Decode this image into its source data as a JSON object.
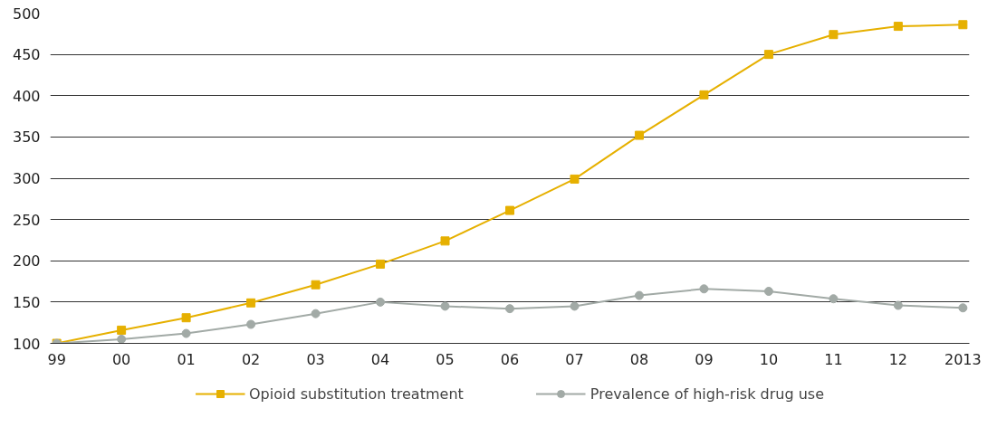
{
  "chart_data": {
    "type": "line",
    "categories": [
      "99",
      "00",
      "01",
      "02",
      "03",
      "04",
      "05",
      "06",
      "07",
      "08",
      "09",
      "10",
      "11",
      "12",
      "2013"
    ],
    "series": [
      {
        "name": "Opioid substitution treatment",
        "color": "#e6b000",
        "marker": "square",
        "values": [
          100,
          116,
          131,
          149,
          171,
          196,
          224,
          261,
          299,
          352,
          401,
          450,
          474,
          484,
          486
        ]
      },
      {
        "name": "Prevalence of high-risk drug use",
        "color": "#a2aaa6",
        "marker": "circle",
        "values": [
          100,
          105,
          112,
          123,
          136,
          150,
          145,
          142,
          145,
          158,
          166,
          163,
          154,
          146,
          143
        ]
      }
    ],
    "ylim": [
      100,
      500
    ],
    "yticks": [
      100,
      150,
      200,
      250,
      300,
      350,
      400,
      450,
      500
    ],
    "grid": "y",
    "legend": "bottom"
  }
}
